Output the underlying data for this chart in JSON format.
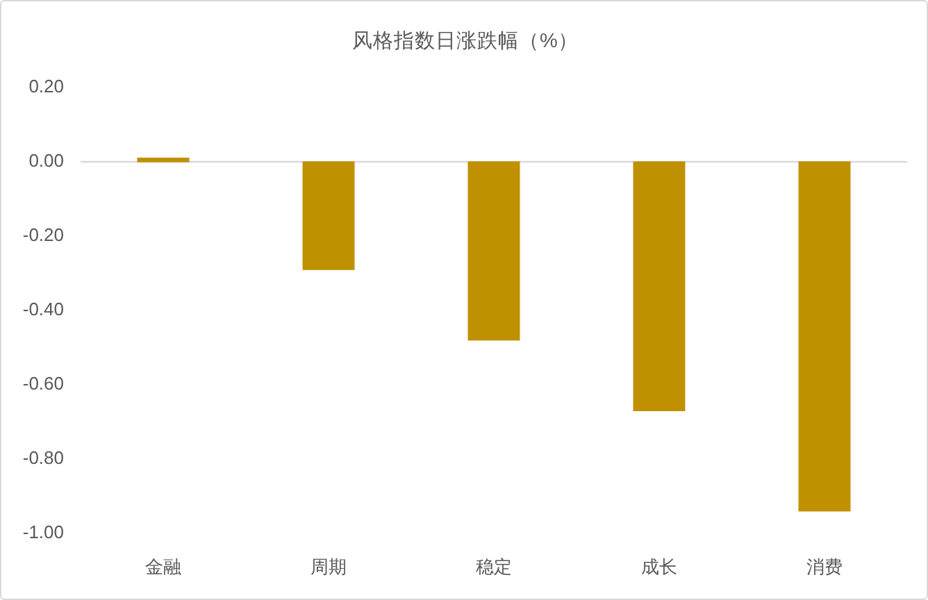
{
  "chart_data": {
    "type": "bar",
    "title": "风格指数日涨跌幅（%）",
    "categories": [
      "金融",
      "周期",
      "稳定",
      "成长",
      "消费"
    ],
    "values": [
      0.01,
      -0.29,
      -0.48,
      -0.67,
      -0.94
    ],
    "color": "#bf9000",
    "ylim": [
      -1,
      0.2
    ],
    "yticks": [
      {
        "value": -1,
        "label": "-1.00"
      },
      {
        "value": -0.8,
        "label": "-0.80"
      },
      {
        "value": -0.6,
        "label": "-0.60"
      },
      {
        "value": -0.4,
        "label": "-0.40"
      },
      {
        "value": -0.2,
        "label": "-0.20"
      },
      {
        "value": 0,
        "label": "0.00"
      },
      {
        "value": 0.2,
        "label": "0.20"
      }
    ]
  }
}
